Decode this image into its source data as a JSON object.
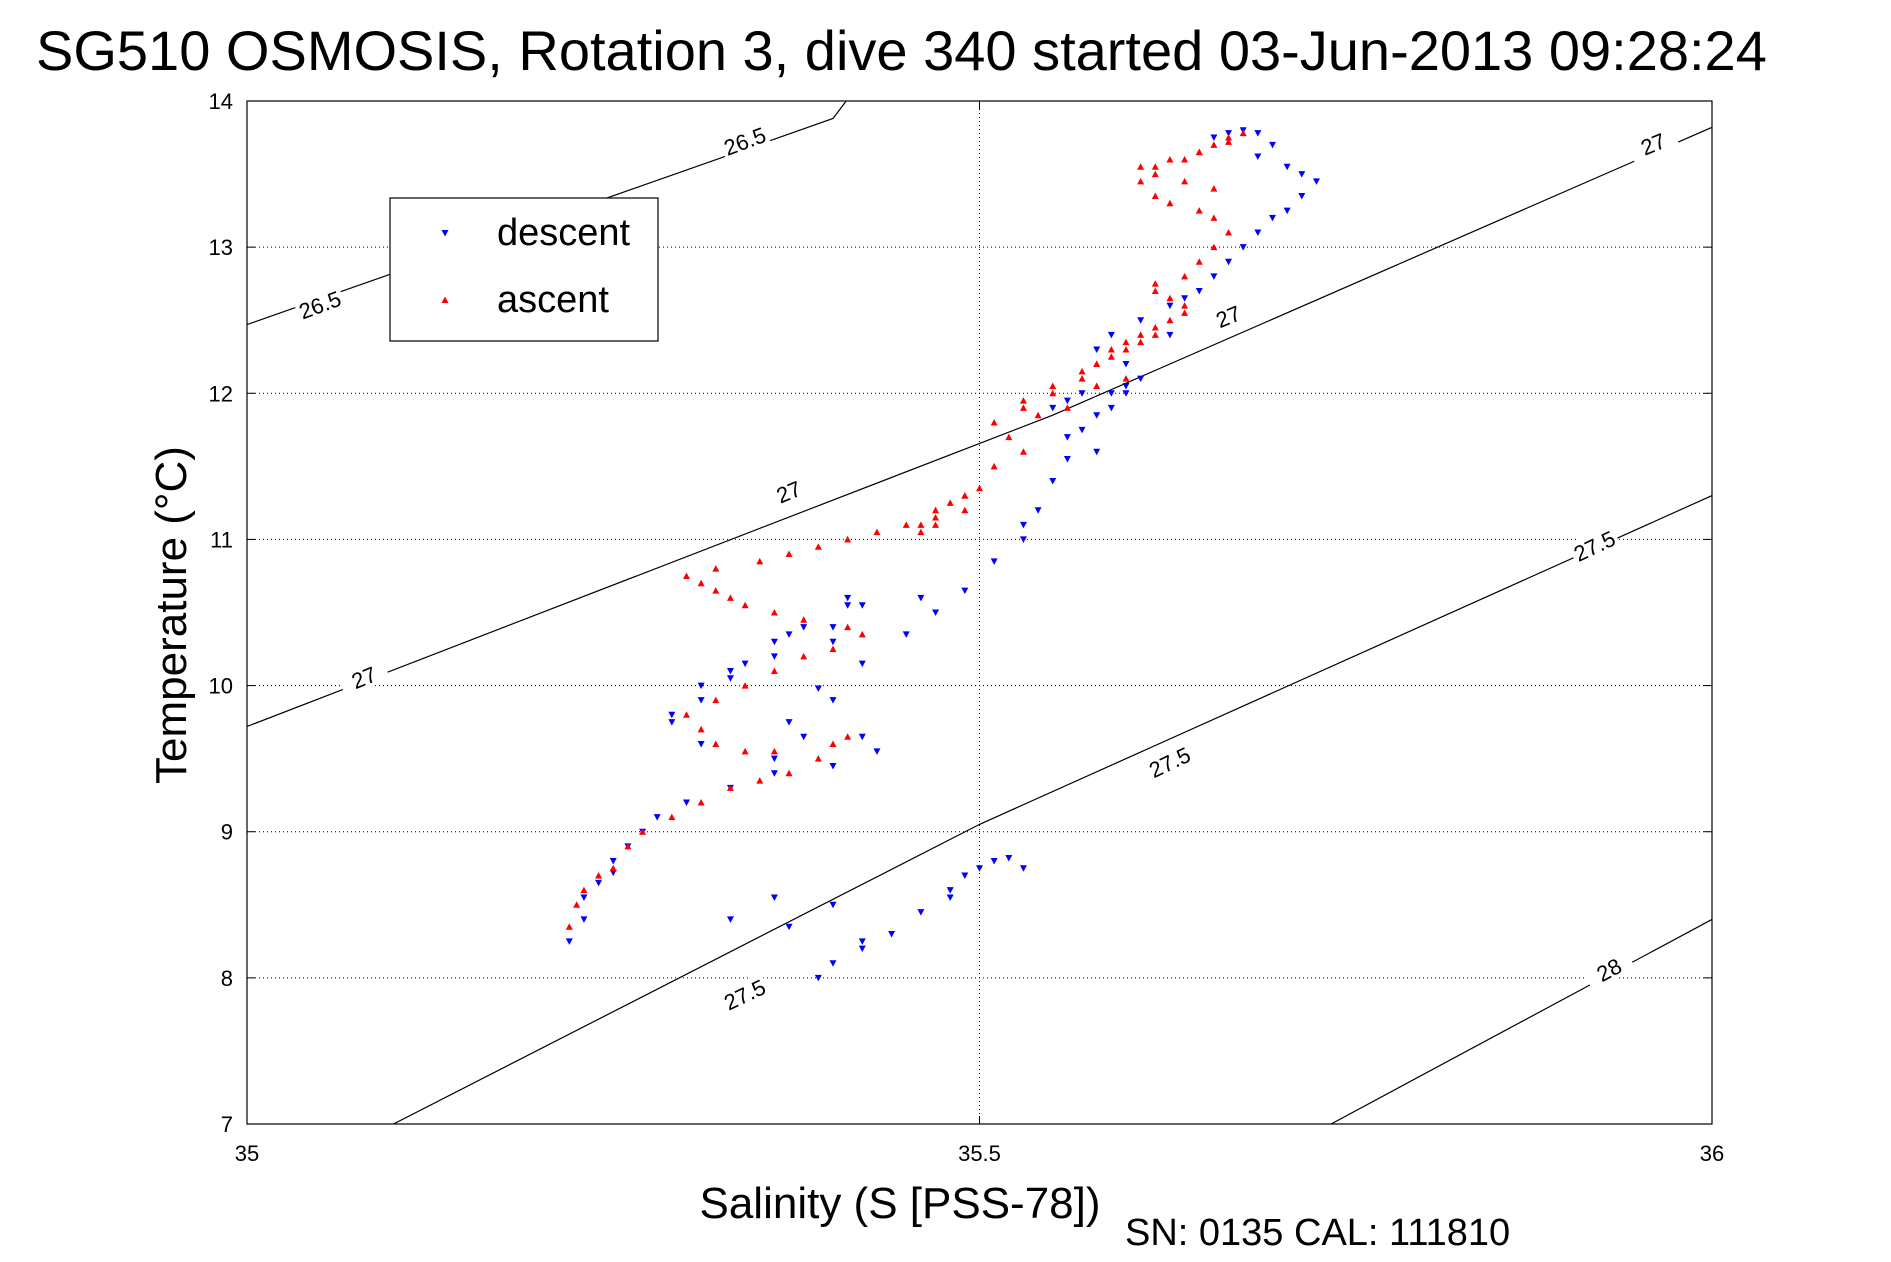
{
  "chart_data": {
    "type": "scatter",
    "title": "SG510 OSMOSIS, Rotation 3, dive 340 started 03-Jun-2013 09:28:24",
    "xlabel": "Salinity (S [PSS-78])",
    "ylabel": "Temperature (°C)",
    "footer": "SN: 0135  CAL: 111810",
    "xlim": [
      35,
      36
    ],
    "ylim": [
      7,
      14
    ],
    "x_ticks": [
      "35",
      "35.5",
      "36"
    ],
    "y_ticks": [
      "7",
      "8",
      "9",
      "10",
      "11",
      "12",
      "13",
      "14"
    ],
    "grid": "dotted, at ticks",
    "legend": {
      "position": "top-left"
    },
    "density_contours": [
      {
        "level": "26.5",
        "points": [
          [
            35.0,
            12.47
          ],
          [
            35.4,
            13.88
          ],
          [
            35.409,
            14.0
          ]
        ],
        "labels": [
          [
            35.05,
            12.6
          ],
          [
            35.34,
            13.72
          ]
        ]
      },
      {
        "level": "27",
        "points": [
          [
            35.0,
            9.72
          ],
          [
            35.55,
            11.85
          ],
          [
            36.0,
            13.82
          ]
        ],
        "labels": [
          [
            35.08,
            10.05
          ],
          [
            35.37,
            11.32
          ],
          [
            35.67,
            12.52
          ],
          [
            35.96,
            13.7
          ]
        ]
      },
      {
        "level": "27.5",
        "points": [
          [
            35.1,
            7.0
          ],
          [
            35.5,
            9.05
          ],
          [
            36.0,
            11.3
          ]
        ],
        "labels": [
          [
            35.34,
            7.88
          ],
          [
            35.63,
            9.47
          ],
          [
            35.92,
            10.95
          ]
        ]
      },
      {
        "level": "28",
        "points": [
          [
            35.74,
            7.0
          ],
          [
            36.0,
            8.4
          ]
        ],
        "labels": [
          [
            35.93,
            8.05
          ]
        ]
      }
    ],
    "series": [
      {
        "name": "descent",
        "color": "#0000ff",
        "marker": "down-triangle",
        "x": [
          35.22,
          35.23,
          35.23,
          35.24,
          35.25,
          35.25,
          35.26,
          35.27,
          35.28,
          35.3,
          35.33,
          35.36,
          35.38,
          35.4,
          35.39,
          35.37,
          35.42,
          35.45,
          35.47,
          35.49,
          35.51,
          35.53,
          35.46,
          35.41,
          35.4,
          35.42,
          35.43,
          35.4,
          35.36,
          35.31,
          35.29,
          35.31,
          35.33,
          35.36,
          35.37,
          35.4,
          35.42,
          35.41,
          35.38,
          35.36,
          35.34,
          35.33,
          35.31,
          35.29,
          35.33,
          35.36,
          35.37,
          35.4,
          35.42,
          35.4,
          35.39,
          35.42,
          35.44,
          35.46,
          35.48,
          35.48,
          35.49,
          35.5,
          35.51,
          35.52,
          35.53,
          35.55,
          35.56,
          35.57,
          35.58,
          35.59,
          35.58,
          35.56,
          35.55,
          35.54,
          35.53,
          35.56,
          35.57,
          35.59,
          35.6,
          35.61,
          35.6,
          35.58,
          35.59,
          35.61,
          35.63,
          35.64,
          35.65,
          35.66,
          35.67,
          35.68,
          35.69,
          35.7,
          35.71,
          35.72,
          35.73,
          35.72,
          35.71,
          35.69,
          35.7,
          35.69,
          35.68,
          35.67,
          35.66,
          35.63,
          35.6
        ],
        "y": [
          8.25,
          8.4,
          8.55,
          8.65,
          8.72,
          8.8,
          8.9,
          9.0,
          9.1,
          9.2,
          9.3,
          9.5,
          9.65,
          9.9,
          9.98,
          9.75,
          10.15,
          10.35,
          10.5,
          10.65,
          10.85,
          11.0,
          10.6,
          10.55,
          10.3,
          9.65,
          9.55,
          9.45,
          9.4,
          9.6,
          9.8,
          10.0,
          10.1,
          10.2,
          10.35,
          10.4,
          10.55,
          10.6,
          10.4,
          10.3,
          10.15,
          10.05,
          9.9,
          9.75,
          8.4,
          8.55,
          8.35,
          8.5,
          8.25,
          8.1,
          8.0,
          8.2,
          8.3,
          8.45,
          8.55,
          8.6,
          8.7,
          8.75,
          8.8,
          8.82,
          8.75,
          11.9,
          11.95,
          12.0,
          11.85,
          12.0,
          11.6,
          11.55,
          11.4,
          11.2,
          11.1,
          11.7,
          11.75,
          11.9,
          12.05,
          12.1,
          12.2,
          12.3,
          12.4,
          12.5,
          12.6,
          12.65,
          12.7,
          12.8,
          12.9,
          13.0,
          13.1,
          13.2,
          13.25,
          13.35,
          13.45,
          13.5,
          13.55,
          13.62,
          13.7,
          13.78,
          13.8,
          13.78,
          13.75,
          12.4,
          12.0
        ],
        "note": "approximate digitization"
      },
      {
        "name": "ascent",
        "color": "#ff0000",
        "marker": "up-triangle",
        "x": [
          35.22,
          35.225,
          35.23,
          35.24,
          35.25,
          35.26,
          35.27,
          35.29,
          35.31,
          35.33,
          35.35,
          35.37,
          35.39,
          35.4,
          35.41,
          35.36,
          35.34,
          35.32,
          35.31,
          35.3,
          35.32,
          35.34,
          35.36,
          35.38,
          35.4,
          35.42,
          35.41,
          35.38,
          35.36,
          35.34,
          35.33,
          35.32,
          35.31,
          35.3,
          35.32,
          35.35,
          35.37,
          35.39,
          35.41,
          35.43,
          35.45,
          35.47,
          35.49,
          35.5,
          35.49,
          35.48,
          35.47,
          35.46,
          35.46,
          35.47,
          35.49,
          35.51,
          35.53,
          35.52,
          35.51,
          35.53,
          35.55,
          35.57,
          35.58,
          35.59,
          35.6,
          35.61,
          35.62,
          35.6,
          35.58,
          35.56,
          35.54,
          35.53,
          35.55,
          35.57,
          35.58,
          35.59,
          35.6,
          35.61,
          35.62,
          35.63,
          35.64,
          35.64,
          35.63,
          35.62,
          35.62,
          35.64,
          35.65,
          35.66,
          35.67,
          35.66,
          35.65,
          35.63,
          35.62,
          35.61,
          35.62,
          35.64,
          35.65,
          35.66,
          35.67,
          35.68,
          35.67,
          35.65,
          35.63,
          35.61,
          35.62,
          35.64,
          35.66
        ],
        "y": [
          8.35,
          8.5,
          8.6,
          8.7,
          8.75,
          8.9,
          9.0,
          9.1,
          9.2,
          9.3,
          9.35,
          9.4,
          9.5,
          9.6,
          9.65,
          9.55,
          9.55,
          9.6,
          9.7,
          9.8,
          9.9,
          10.0,
          10.1,
          10.2,
          10.25,
          10.35,
          10.4,
          10.45,
          10.5,
          10.55,
          10.6,
          10.65,
          10.7,
          10.75,
          10.8,
          10.85,
          10.9,
          10.95,
          11.0,
          11.05,
          11.1,
          11.15,
          11.2,
          11.35,
          11.3,
          11.25,
          11.1,
          11.05,
          11.1,
          11.2,
          11.3,
          11.5,
          11.6,
          11.7,
          11.8,
          11.9,
          12.0,
          12.1,
          12.2,
          12.25,
          12.3,
          12.35,
          12.4,
          12.1,
          12.05,
          11.9,
          11.85,
          11.95,
          12.05,
          12.15,
          12.2,
          12.3,
          12.35,
          12.4,
          12.45,
          12.5,
          12.55,
          12.6,
          12.65,
          12.7,
          12.75,
          12.8,
          12.9,
          13.0,
          13.1,
          13.2,
          13.25,
          13.3,
          13.35,
          13.45,
          13.55,
          13.6,
          13.65,
          13.7,
          13.75,
          13.78,
          13.72,
          13.65,
          13.6,
          13.55,
          13.5,
          13.45,
          13.4
        ],
        "note": "approximate digitization"
      }
    ]
  }
}
